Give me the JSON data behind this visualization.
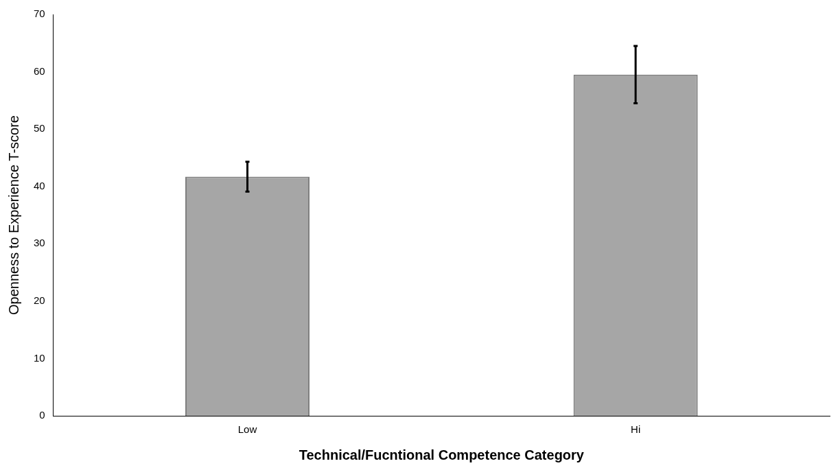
{
  "chart_data": {
    "type": "bar",
    "xlabel": "Technical/Fucntional Competence Category",
    "ylabel": "Openness to Experience T-score",
    "categories": [
      "Low",
      "Hi"
    ],
    "values": [
      41.7,
      59.5
    ],
    "errors": [
      2.6,
      5
    ],
    "color": "#a6a6a6",
    "ylim": [
      0,
      70
    ],
    "yticks": [
      0,
      10,
      20,
      30,
      40,
      50,
      60,
      70
    ],
    "grid": false,
    "legend": false
  }
}
